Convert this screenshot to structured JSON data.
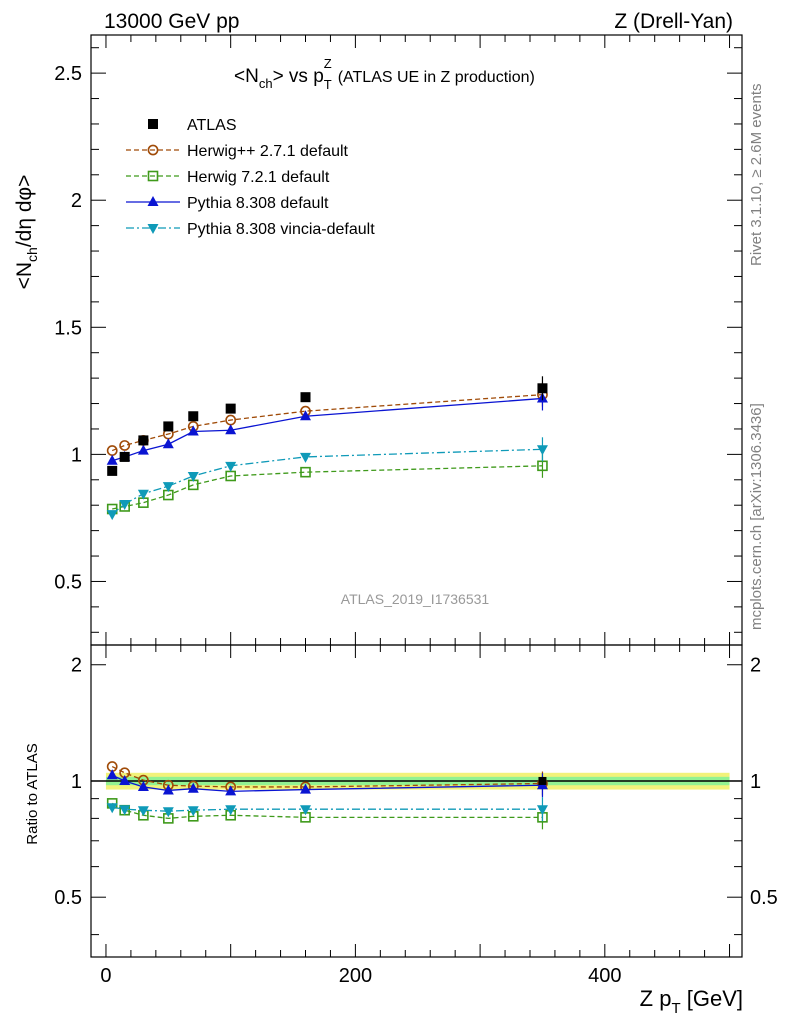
{
  "header": {
    "left": "13000 GeV pp",
    "right": "Z (Drell-Yan)"
  },
  "chart_data": {
    "type": "line",
    "title": "<N_ch> vs p_T^Z (ATLAS UE in Z production)",
    "title_main": "<N",
    "title_sub1": "ch",
    "title_mid": "> vs p",
    "title_sub2": "T",
    "title_sup2": "Z",
    "title_note": "(ATLAS UE in Z production)",
    "ylabel": "<N_ch/dη dφ>",
    "ylabel_a": "<N",
    "ylabel_sub": "ch",
    "ylabel_b": "/dη dφ>",
    "ratio_ylabel": "Ratio to ATLAS",
    "xlabel": "Z p_T [GeV]",
    "xlabel_a": "Z p",
    "xlabel_sub": "T",
    "xlabel_b": " [GeV]",
    "watermark": "ATLAS_2019_I1736531",
    "side_top": "Rivet 3.1.10, ≥ 2.6M events",
    "side_bottom": "mcplots.cern.ch [arXiv:1306.3436]",
    "xlim": [
      -12,
      510
    ],
    "ylim": [
      0.25,
      2.65
    ],
    "ratio_ylim": [
      0.35,
      2.25
    ],
    "x_ticks": [
      0,
      200,
      400
    ],
    "x_tick_labels": [
      "0",
      "200",
      "400"
    ],
    "y_ticks": [
      0.5,
      1,
      1.5,
      2,
      2.5
    ],
    "y_tick_labels": [
      "0.5",
      "1",
      "1.5",
      "2",
      "2.5"
    ],
    "ratio_ticks": [
      0.5,
      1,
      2
    ],
    "ratio_tick_labels": [
      "0.5",
      "1",
      "2"
    ],
    "x": [
      5,
      15,
      30,
      50,
      70,
      100,
      160,
      350
    ],
    "series": [
      {
        "name": "ATLAS",
        "color": "#000000",
        "marker": "square-filled",
        "style": "none",
        "values": [
          0.935,
          0.99,
          1.055,
          1.11,
          1.15,
          1.18,
          1.225,
          1.26
        ],
        "ratio": [
          1.0,
          1.0,
          1.0,
          1.0,
          1.0,
          1.0,
          1.0,
          1.0
        ]
      },
      {
        "name": "Herwig++ 2.7.1 default",
        "color": "#a04b08",
        "marker": "circle-open",
        "style": "dashed",
        "values": [
          1.015,
          1.035,
          1.055,
          1.08,
          1.11,
          1.135,
          1.17,
          1.235
        ],
        "ratio": [
          1.09,
          1.05,
          1.005,
          0.975,
          0.97,
          0.965,
          0.965,
          0.985
        ]
      },
      {
        "name": "Herwig 7.2.1 default",
        "color": "#3f9a1b",
        "marker": "square-open",
        "style": "dashed",
        "values": [
          0.785,
          0.795,
          0.81,
          0.84,
          0.88,
          0.915,
          0.93,
          0.955
        ],
        "ratio": [
          0.875,
          0.84,
          0.815,
          0.8,
          0.81,
          0.815,
          0.805,
          0.805
        ]
      },
      {
        "name": "Pythia 8.308 default",
        "color": "#0a14d2",
        "marker": "triangle-up-filled",
        "style": "solid",
        "values": [
          0.975,
          0.99,
          1.015,
          1.04,
          1.09,
          1.095,
          1.15,
          1.22
        ],
        "ratio": [
          1.035,
          1.0,
          0.965,
          0.945,
          0.955,
          0.94,
          0.95,
          0.975
        ]
      },
      {
        "name": "Pythia 8.308 vincia-default",
        "color": "#0f9ab8",
        "marker": "triangle-down-filled",
        "style": "dashdot",
        "values": [
          0.765,
          0.805,
          0.845,
          0.875,
          0.915,
          0.955,
          0.99,
          1.02
        ],
        "ratio": [
          0.855,
          0.845,
          0.84,
          0.835,
          0.84,
          0.845,
          0.845,
          0.845
        ]
      }
    ],
    "ratio_band_outer": [
      0.95,
      1.05
    ],
    "ratio_band_inner": [
      0.975,
      1.025
    ],
    "band_colors": {
      "outer": "#f2f27a",
      "inner": "#92f292"
    },
    "legend_position": "top-left"
  }
}
